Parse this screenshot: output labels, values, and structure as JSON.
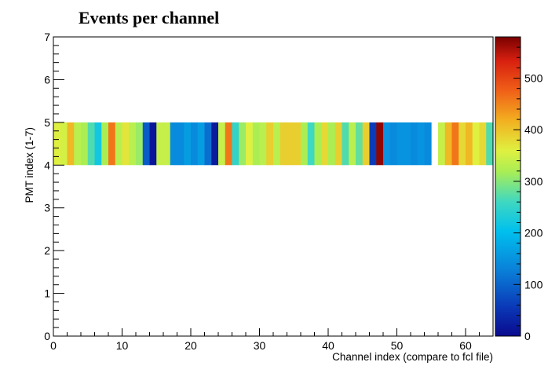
{
  "chart_data": {
    "type": "heatmap",
    "title": "Events per channel",
    "xlabel": "Channel index (compare to fcl file)",
    "ylabel": "PMT index (1-7)",
    "xlim": [
      0,
      64
    ],
    "ylim": [
      0,
      7
    ],
    "x_ticks": [
      0,
      10,
      20,
      30,
      40,
      50,
      60
    ],
    "y_ticks": [
      0,
      1,
      2,
      3,
      4,
      5,
      6,
      7
    ],
    "zlim": [
      0,
      580
    ],
    "z_ticks": [
      0,
      100,
      200,
      300,
      400,
      500
    ],
    "colormap": "rainbow (dark blue → cyan → green/yellow → orange → dark red)",
    "grid": false,
    "filled_y_bin": [
      4,
      5
    ],
    "bin_width": 1,
    "cells": [
      {
        "x": 0,
        "z": 360
      },
      {
        "x": 1,
        "z": 350
      },
      {
        "x": 2,
        "z": 410
      },
      {
        "x": 3,
        "z": 330
      },
      {
        "x": 4,
        "z": 320
      },
      {
        "x": 5,
        "z": 270
      },
      {
        "x": 6,
        "z": 220
      },
      {
        "x": 7,
        "z": 320
      },
      {
        "x": 8,
        "z": 460
      },
      {
        "x": 9,
        "z": 330
      },
      {
        "x": 10,
        "z": 370
      },
      {
        "x": 11,
        "z": 330
      },
      {
        "x": 12,
        "z": 310
      },
      {
        "x": 13,
        "z": 90
      },
      {
        "x": 14,
        "z": 15
      },
      {
        "x": 15,
        "z": 340
      },
      {
        "x": 16,
        "z": 340
      },
      {
        "x": 17,
        "z": 140
      },
      {
        "x": 18,
        "z": 140
      },
      {
        "x": 19,
        "z": 160
      },
      {
        "x": 20,
        "z": 140
      },
      {
        "x": 21,
        "z": 160
      },
      {
        "x": 22,
        "z": 110
      },
      {
        "x": 23,
        "z": 20
      },
      {
        "x": 24,
        "z": 340
      },
      {
        "x": 25,
        "z": 460
      },
      {
        "x": 26,
        "z": 250
      },
      {
        "x": 27,
        "z": 310
      },
      {
        "x": 28,
        "z": 360
      },
      {
        "x": 29,
        "z": 320
      },
      {
        "x": 30,
        "z": 330
      },
      {
        "x": 31,
        "z": 390
      },
      {
        "x": 32,
        "z": 330
      },
      {
        "x": 33,
        "z": 390
      },
      {
        "x": 34,
        "z": 390
      },
      {
        "x": 35,
        "z": 390
      },
      {
        "x": 36,
        "z": 320
      },
      {
        "x": 37,
        "z": 260
      },
      {
        "x": 38,
        "z": 320
      },
      {
        "x": 39,
        "z": 380
      },
      {
        "x": 40,
        "z": 320
      },
      {
        "x": 41,
        "z": 390
      },
      {
        "x": 42,
        "z": 270
      },
      {
        "x": 43,
        "z": 330
      },
      {
        "x": 44,
        "z": 280
      },
      {
        "x": 45,
        "z": 390
      },
      {
        "x": 46,
        "z": 60
      },
      {
        "x": 47,
        "z": 570
      },
      {
        "x": 48,
        "z": 150
      },
      {
        "x": 49,
        "z": 140
      },
      {
        "x": 50,
        "z": 150
      },
      {
        "x": 51,
        "z": 150
      },
      {
        "x": 52,
        "z": 140
      },
      {
        "x": 53,
        "z": 150
      },
      {
        "x": 54,
        "z": 140
      },
      {
        "x": 56,
        "z": 340
      },
      {
        "x": 57,
        "z": 410
      },
      {
        "x": 58,
        "z": 460
      },
      {
        "x": 59,
        "z": 380
      },
      {
        "x": 60,
        "z": 410
      },
      {
        "x": 61,
        "z": 360
      },
      {
        "x": 62,
        "z": 380
      },
      {
        "x": 63,
        "z": 270
      }
    ]
  }
}
